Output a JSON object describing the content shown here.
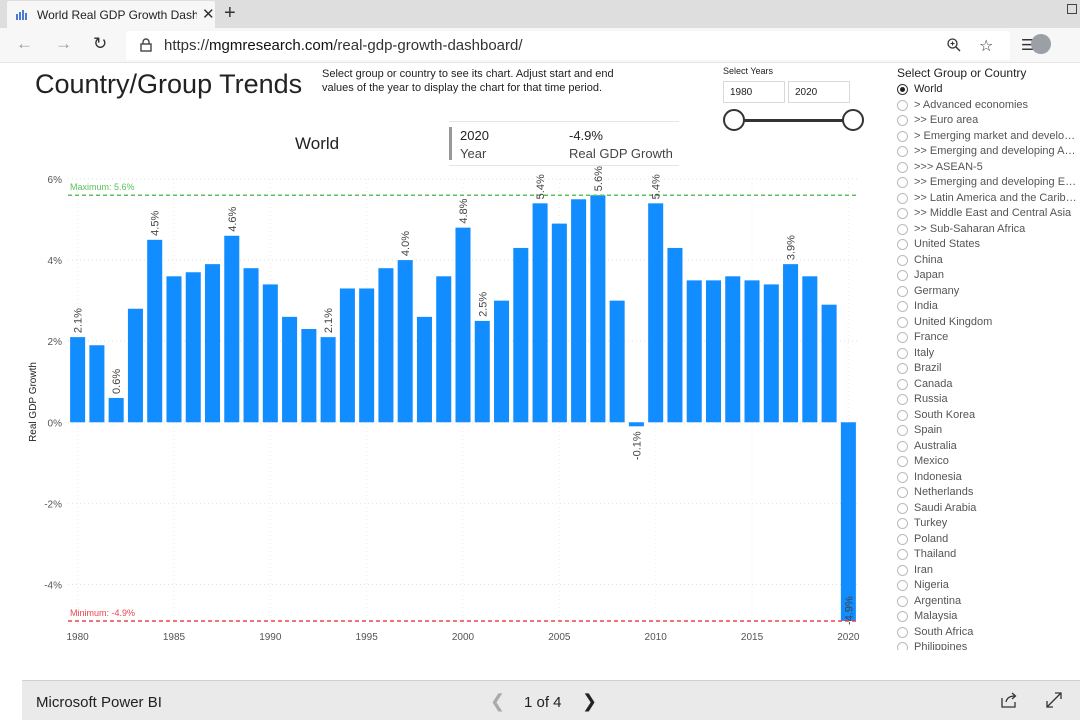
{
  "browser": {
    "tab_title": "World Real GDP Growth Dashboard",
    "url_scheme": "https://",
    "url_host": "mgmresearch.com",
    "url_path": "/real-gdp-growth-dashboard/"
  },
  "report": {
    "title": "Country/Group Trends",
    "instructions": "Select group or country to see its chart. Adjust start and end values of the year to display the chart for that time period.",
    "years_label": "Select Years",
    "start_year": "1980",
    "end_year": "2020",
    "card_title": "World",
    "card_year_value": "2020",
    "card_year_label": "Year",
    "card_growth_value": "-4.9%",
    "card_growth_label": "Real GDP Growth",
    "slicer_title": "Select Group or Country",
    "slicer_items": [
      "World",
      "> Advanced economies",
      ">> Euro area",
      "> Emerging market and developing economies",
      ">> Emerging and developing Asia",
      ">>> ASEAN-5",
      ">> Emerging and developing Europe",
      ">> Latin America and the Caribbean",
      ">> Middle East and Central Asia",
      ">> Sub-Saharan Africa",
      "United States",
      "China",
      "Japan",
      "Germany",
      "India",
      "United Kingdom",
      "France",
      "Italy",
      "Brazil",
      "Canada",
      "Russia",
      "South Korea",
      "Spain",
      "Australia",
      "Mexico",
      "Indonesia",
      "Netherlands",
      "Saudi Arabia",
      "Turkey",
      "Poland",
      "Thailand",
      "Iran",
      "Nigeria",
      "Argentina",
      "Malaysia",
      "South Africa",
      "Philippines"
    ],
    "selected_item": "World"
  },
  "footer": {
    "brand": "Microsoft Power BI",
    "page_indicator": "1 of 4"
  },
  "colors": {
    "bar": "#118dff",
    "max_line": "#5cc25c",
    "min_line": "#e8454f"
  },
  "chart_data": {
    "type": "bar",
    "title": "World",
    "xlabel": "",
    "ylabel": "Real GDP Growth",
    "ylim": [
      -5,
      6
    ],
    "y_ticks": [
      "6%",
      "4%",
      "2%",
      "0%",
      "-2%",
      "-4%"
    ],
    "y_tick_values": [
      6,
      4,
      2,
      0,
      -2,
      -4
    ],
    "x_ticks": [
      "1980",
      "1985",
      "1990",
      "1995",
      "2000",
      "2005",
      "2010",
      "2015",
      "2020"
    ],
    "categories": [
      1980,
      1981,
      1982,
      1983,
      1984,
      1985,
      1986,
      1987,
      1988,
      1989,
      1990,
      1991,
      1992,
      1993,
      1994,
      1995,
      1996,
      1997,
      1998,
      1999,
      2000,
      2001,
      2002,
      2003,
      2004,
      2005,
      2006,
      2007,
      2008,
      2009,
      2010,
      2011,
      2012,
      2013,
      2014,
      2015,
      2016,
      2017,
      2018,
      2019,
      2020
    ],
    "values": [
      2.1,
      1.9,
      0.6,
      2.8,
      4.5,
      3.6,
      3.7,
      3.9,
      4.6,
      3.8,
      3.4,
      2.6,
      2.3,
      2.1,
      3.3,
      3.3,
      3.8,
      4.0,
      2.6,
      3.6,
      4.8,
      2.5,
      3.0,
      4.3,
      5.4,
      4.9,
      5.5,
      5.6,
      3.0,
      -0.1,
      5.4,
      4.3,
      3.5,
      3.5,
      3.6,
      3.5,
      3.4,
      3.9,
      3.6,
      2.9,
      -4.9
    ],
    "data_labels": [
      {
        "year": 1980,
        "text": "2.1%"
      },
      {
        "year": 1982,
        "text": "0.6%"
      },
      {
        "year": 1984,
        "text": "4.5%"
      },
      {
        "year": 1988,
        "text": "4.6%"
      },
      {
        "year": 1993,
        "text": "2.1%"
      },
      {
        "year": 1997,
        "text": "4.0%"
      },
      {
        "year": 2000,
        "text": "4.8%"
      },
      {
        "year": 2001,
        "text": "2.5%"
      },
      {
        "year": 2004,
        "text": "5.4%"
      },
      {
        "year": 2007,
        "text": "5.6%"
      },
      {
        "year": 2009,
        "text": "-0.1%"
      },
      {
        "year": 2010,
        "text": "5.4%"
      },
      {
        "year": 2017,
        "text": "3.9%"
      },
      {
        "year": 2020,
        "text": "-4.9%"
      }
    ],
    "reference_lines": [
      {
        "name": "max",
        "label": "Maximum: 5.6%",
        "value": 5.6
      },
      {
        "name": "min",
        "label": "Minimum: -4.9%",
        "value": -4.9
      }
    ]
  }
}
